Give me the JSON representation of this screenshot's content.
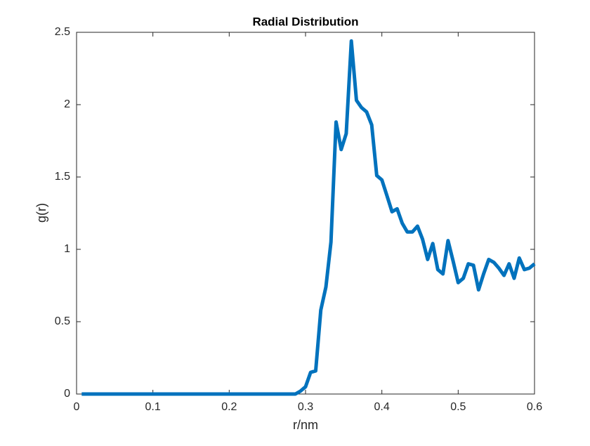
{
  "chart_data": {
    "type": "line",
    "title": "Radial Distribution",
    "x_label": "r/nm",
    "y_label": "g(r)",
    "x": [
      0.0067,
      0.0133,
      0.02,
      0.0267,
      0.0333,
      0.04,
      0.0467,
      0.0533,
      0.06,
      0.0667,
      0.0733,
      0.08,
      0.0867,
      0.0933,
      0.1,
      0.1067,
      0.1133,
      0.12,
      0.1267,
      0.1333,
      0.14,
      0.1467,
      0.1533,
      0.16,
      0.1667,
      0.1733,
      0.18,
      0.1867,
      0.1933,
      0.2,
      0.2067,
      0.2133,
      0.22,
      0.2267,
      0.2333,
      0.24,
      0.2467,
      0.2533,
      0.26,
      0.2667,
      0.2733,
      0.28,
      0.2867,
      0.2933,
      0.3,
      0.3067,
      0.3133,
      0.32,
      0.3267,
      0.3333,
      0.34,
      0.3467,
      0.3533,
      0.36,
      0.3667,
      0.3733,
      0.38,
      0.3867,
      0.3933,
      0.4,
      0.4067,
      0.4133,
      0.42,
      0.4267,
      0.4333,
      0.44,
      0.4467,
      0.4533,
      0.46,
      0.4667,
      0.4733,
      0.48,
      0.4867,
      0.4933,
      0.5,
      0.5067,
      0.5133,
      0.52,
      0.5267,
      0.5333,
      0.54,
      0.5467,
      0.5533,
      0.56,
      0.5667,
      0.5733,
      0.58,
      0.5867,
      0.5933,
      0.6
    ],
    "series": [
      {
        "name": "g(r)",
        "color": "#0072bd",
        "values": [
          0,
          0,
          0,
          0,
          0,
          0,
          0,
          0,
          0,
          0,
          0,
          0,
          0,
          0,
          0,
          0,
          0,
          0,
          0,
          0,
          0,
          0,
          0,
          0,
          0,
          0,
          0,
          0,
          0,
          0,
          0,
          0,
          0,
          0,
          0,
          0,
          0,
          0,
          0,
          0,
          0,
          0,
          0,
          0.02,
          0.05,
          0.15,
          0.16,
          0.58,
          0.74,
          1.05,
          1.88,
          1.69,
          1.8,
          2.44,
          2.03,
          1.98,
          1.95,
          1.86,
          1.51,
          1.48,
          1.37,
          1.26,
          1.28,
          1.18,
          1.12,
          1.12,
          1.16,
          1.07,
          0.93,
          1.04,
          0.86,
          0.83,
          1.06,
          0.92,
          0.77,
          0.8,
          0.9,
          0.89,
          0.72,
          0.83,
          0.93,
          0.91,
          0.87,
          0.82,
          0.9,
          0.8,
          0.94,
          0.86,
          0.87,
          0.9
        ]
      }
    ],
    "xlim": [
      0,
      0.6
    ],
    "xticks": [
      0,
      0.1,
      0.2,
      0.3,
      0.4,
      0.5,
      0.6
    ],
    "ylim": [
      0,
      2.5
    ],
    "yticks": [
      0,
      0.5,
      1,
      1.5,
      2,
      2.5
    ],
    "grid": false
  }
}
